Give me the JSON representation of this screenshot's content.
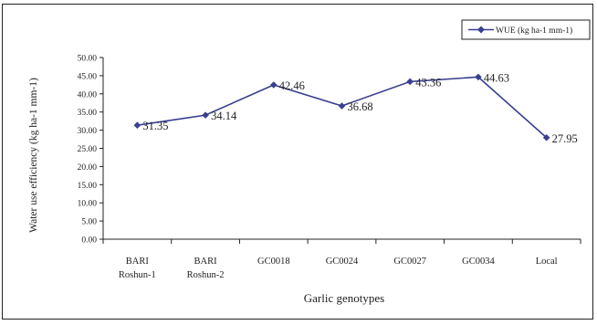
{
  "chart_data": {
    "type": "line",
    "title": "",
    "xlabel": "Garlic genotypes",
    "ylabel": "Water use efficiency  (kg ha-1 mm-1)",
    "categories": [
      "BARI Roshun-1",
      "BARI Roshun-2",
      "GC0018",
      "GC0024",
      "GC0027",
      "GC0034",
      "Local"
    ],
    "category_lines": [
      [
        "BARI",
        "Roshun-1"
      ],
      [
        "BARI",
        "Roshun-2"
      ],
      [
        "GC0018"
      ],
      [
        "GC0024"
      ],
      [
        "GC0027"
      ],
      [
        "GC0034"
      ],
      [
        "Local"
      ]
    ],
    "series": [
      {
        "name": "WUE (kg ha-1 mm-1)",
        "values": [
          31.35,
          34.14,
          42.46,
          36.68,
          43.36,
          44.63,
          27.95
        ],
        "value_labels": [
          "31.35",
          "34.14",
          "42.46",
          "36.68",
          "43.36",
          "44.63",
          "27.95"
        ],
        "color": "#3a3f8f"
      }
    ],
    "ylim": [
      0,
      50
    ],
    "yticks": [
      0,
      5,
      10,
      15,
      20,
      25,
      30,
      35,
      40,
      45,
      50
    ],
    "ytick_labels": [
      "0.00",
      "5.00",
      "10.00",
      "15.00",
      "20.00",
      "25.00",
      "30.00",
      "35.00",
      "40.00",
      "45.00",
      "50.00"
    ],
    "grid": false,
    "legend_position": "top-right",
    "marker": "diamond"
  }
}
